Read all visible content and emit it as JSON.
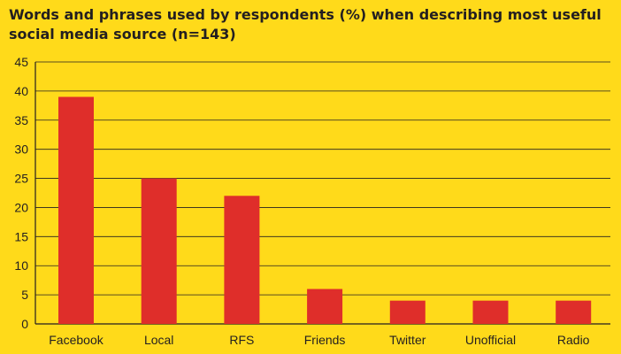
{
  "chart_data": {
    "type": "bar",
    "title": "Words and phrases used by respondents (%) when describing most useful social media source (n=143)",
    "xlabel": "",
    "ylabel": "",
    "categories": [
      "Facebook",
      "Local",
      "RFS",
      "Friends",
      "Twitter",
      "Unofficial",
      "Radio"
    ],
    "values": [
      39,
      25,
      22,
      6,
      4,
      4,
      4
    ],
    "ylim": [
      0,
      45
    ],
    "yticks": [
      0,
      5,
      10,
      15,
      20,
      25,
      30,
      35,
      40,
      45
    ],
    "grid": true,
    "legend": "none",
    "bar_color": "#DF2E2A",
    "grid_color": "#231F20",
    "background_color": "#FFDA1A"
  }
}
